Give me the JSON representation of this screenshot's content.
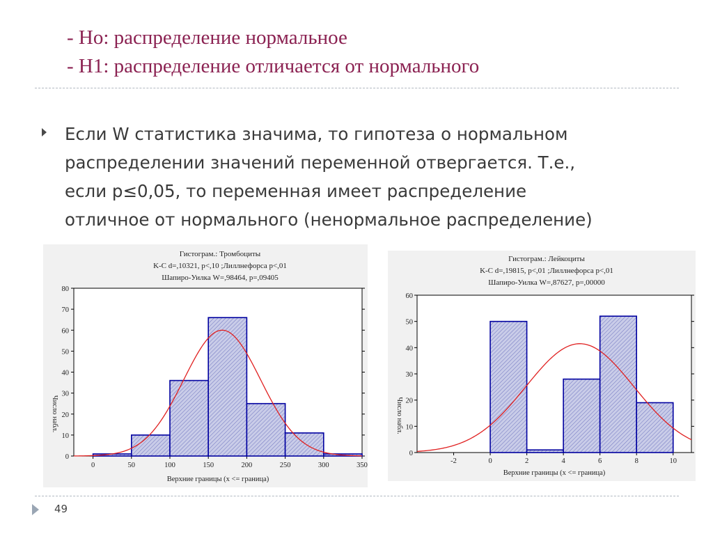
{
  "slide": {
    "h0": "- Но: распределение нормальное",
    "h1": "- Н1: распределение отличается от нормального",
    "bullet_lines": [
      "Если W статистика значима, то гипотеза о нормальном",
      "распределении значений переменной отвергается. Т.е.,",
      "если р≤0,05, то переменная имеет распределение",
      "отличное от нормального (ненормальное распределение)"
    ],
    "page_number": "49"
  },
  "colors": {
    "bar_fill": "#c9cce8",
    "bar_edge": "#0000a0",
    "curve": "#e02020",
    "heading": "#8b2252"
  },
  "chart_data": [
    {
      "type": "bar",
      "title_lines": [
        "Гистограм.: Тромбоциты",
        "K-C d=,10321, p<,10 ;Лиллнефорса p<,01",
        "Шапиро-Уилка W=,98464, p=,09405"
      ],
      "xlabel": "Верхние границы (x <= граница)",
      "ylabel": "Число набл.",
      "xlim": [
        -25,
        350
      ],
      "ylim": [
        0,
        80
      ],
      "xticks": [
        0,
        50,
        100,
        150,
        200,
        250,
        300,
        350
      ],
      "yticks": [
        0,
        10,
        20,
        30,
        40,
        50,
        60,
        70,
        80
      ],
      "bins": [
        {
          "x0": 0,
          "x1": 50,
          "value": 1
        },
        {
          "x0": 50,
          "x1": 100,
          "value": 10
        },
        {
          "x0": 100,
          "x1": 150,
          "value": 36
        },
        {
          "x0": 150,
          "x1": 200,
          "value": 66
        },
        {
          "x0": 200,
          "x1": 250,
          "value": 25
        },
        {
          "x0": 250,
          "x1": 300,
          "value": 11
        },
        {
          "x0": 300,
          "x1": 350,
          "value": 1
        }
      ],
      "normal_curve": {
        "mean": 168,
        "sd": 50,
        "peak": 60
      }
    },
    {
      "type": "bar",
      "title_lines": [
        "Гистограм.: Лейкоциты",
        "K-C d=,19815, p<,01 ;Лиллнефорса p<,01",
        "Шапиро-Уилка W=,87627, p=,00000"
      ],
      "xlabel": "Верхние границы (x <= граница)",
      "ylabel": "Число набл.",
      "xlim": [
        -4,
        11
      ],
      "ylim": [
        0,
        60
      ],
      "xticks": [
        -2,
        0,
        2,
        4,
        6,
        8,
        10
      ],
      "yticks": [
        0,
        10,
        20,
        30,
        40,
        50,
        60
      ],
      "bins": [
        {
          "x0": 0,
          "x1": 2,
          "value": 50
        },
        {
          "x0": 2,
          "x1": 4,
          "value": 1
        },
        {
          "x0": 4,
          "x1": 6,
          "value": 28
        },
        {
          "x0": 6,
          "x1": 8,
          "value": 52
        },
        {
          "x0": 8,
          "x1": 10,
          "value": 19
        }
      ],
      "normal_curve": {
        "mean": 4.9,
        "sd": 2.95,
        "peak": 41.5
      }
    }
  ]
}
